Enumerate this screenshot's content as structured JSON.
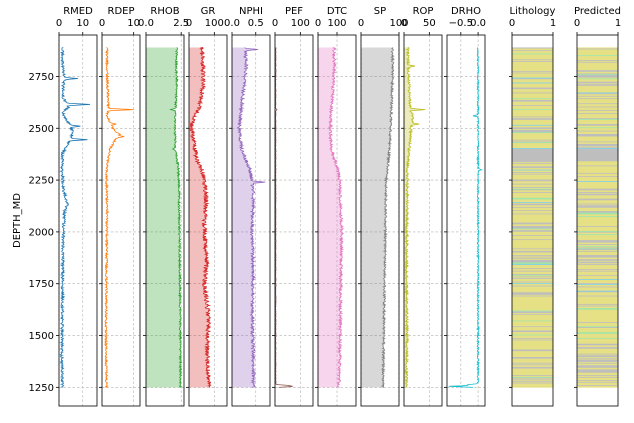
{
  "chart_data": {
    "type": "line",
    "ylabel": "DEPTH_MD",
    "yticks": [
      1250,
      1500,
      1750,
      2000,
      2250,
      2500,
      2750
    ],
    "ylim": [
      1160,
      2950
    ],
    "data_range": [
      1250,
      2890
    ],
    "grid": true,
    "curves": [
      {
        "name": "RMED",
        "color": "#1f77b4",
        "xlim": [
          0,
          16
        ],
        "xticks": [
          0,
          10
        ],
        "fill": false,
        "profile": [
          [
            1250,
            1.4
          ],
          [
            1400,
            1.2
          ],
          [
            1600,
            1.4
          ],
          [
            1800,
            1.5
          ],
          [
            2000,
            1.8
          ],
          [
            2100,
            2.3
          ],
          [
            2140,
            3.5
          ],
          [
            2200,
            2.0
          ],
          [
            2300,
            1.2
          ],
          [
            2380,
            1.5
          ],
          [
            2440,
            4.5
          ],
          [
            2480,
            6.0
          ],
          [
            2510,
            5.0
          ],
          [
            2540,
            3.0
          ],
          [
            2580,
            1.5
          ],
          [
            2600,
            4.0
          ],
          [
            2650,
            1.6
          ],
          [
            2750,
            2.0
          ],
          [
            2800,
            1.5
          ],
          [
            2890,
            1.4
          ]
        ],
        "noise": 0.6,
        "spikes": [
          [
            2445,
            12
          ],
          [
            2615,
            13
          ],
          [
            2740,
            8
          ],
          [
            2510,
            9
          ],
          [
            2130,
            4
          ]
        ]
      },
      {
        "name": "RDEP",
        "color": "#ff7f0e",
        "xlim": [
          0,
          12
        ],
        "xticks": [
          0,
          10
        ],
        "fill": false,
        "profile": [
          [
            1250,
            1.4
          ],
          [
            1500,
            1.3
          ],
          [
            1800,
            1.4
          ],
          [
            2100,
            1.6
          ],
          [
            2300,
            1.4
          ],
          [
            2400,
            2.5
          ],
          [
            2440,
            4.0
          ],
          [
            2470,
            5.5
          ],
          [
            2500,
            3.5
          ],
          [
            2530,
            2.5
          ],
          [
            2560,
            1.6
          ],
          [
            2600,
            2.0
          ],
          [
            2700,
            1.8
          ],
          [
            2800,
            1.6
          ],
          [
            2890,
            1.5
          ]
        ],
        "noise": 0.35,
        "spikes": [
          [
            2590,
            10
          ],
          [
            2460,
            7
          ],
          [
            2520,
            4.5
          ]
        ]
      },
      {
        "name": "RHOB",
        "color": "#2ca02c",
        "xlim": [
          0,
          2.7
        ],
        "xticks": [
          0.0,
          2.5
        ],
        "fill": true,
        "profile": [
          [
            1250,
            2.45
          ],
          [
            1400,
            2.45
          ],
          [
            1700,
            2.42
          ],
          [
            2000,
            2.38
          ],
          [
            2200,
            2.35
          ],
          [
            2310,
            2.3
          ],
          [
            2400,
            2.1
          ],
          [
            2500,
            2.05
          ],
          [
            2600,
            2.1
          ],
          [
            2700,
            2.2
          ],
          [
            2800,
            2.15
          ],
          [
            2890,
            2.2
          ]
        ],
        "noise": 0.07,
        "spikes": [
          [
            2590,
            1.75
          ],
          [
            2400,
            1.9
          ]
        ]
      },
      {
        "name": "GR",
        "color": "#d62728",
        "xlim": [
          0,
          150
        ],
        "xticks": [
          0,
          100
        ],
        "fill": true,
        "profile": [
          [
            1250,
            80
          ],
          [
            1350,
            75
          ],
          [
            1450,
            70
          ],
          [
            1550,
            78
          ],
          [
            1650,
            72
          ],
          [
            1750,
            60
          ],
          [
            1850,
            70
          ],
          [
            1950,
            65
          ],
          [
            2050,
            60
          ],
          [
            2150,
            68
          ],
          [
            2250,
            60
          ],
          [
            2300,
            50
          ],
          [
            2350,
            30
          ],
          [
            2450,
            15
          ],
          [
            2520,
            10
          ],
          [
            2560,
            25
          ],
          [
            2600,
            40
          ],
          [
            2700,
            55
          ],
          [
            2800,
            55
          ],
          [
            2890,
            50
          ]
        ],
        "noise": 9,
        "spikes": []
      },
      {
        "name": "NPHI",
        "color": "#9467bd",
        "xlim": [
          0,
          0.8
        ],
        "xticks": [
          0.0,
          0.5
        ],
        "fill": true,
        "profile": [
          [
            1250,
            0.45
          ],
          [
            1400,
            0.45
          ],
          [
            1600,
            0.42
          ],
          [
            1800,
            0.45
          ],
          [
            2000,
            0.42
          ],
          [
            2200,
            0.45
          ],
          [
            2300,
            0.38
          ],
          [
            2400,
            0.2
          ],
          [
            2500,
            0.15
          ],
          [
            2600,
            0.2
          ],
          [
            2700,
            0.25
          ],
          [
            2800,
            0.3
          ],
          [
            2890,
            0.28
          ]
        ],
        "noise": 0.035,
        "spikes": [
          [
            2240,
            0.7
          ],
          [
            2880,
            0.55
          ]
        ]
      },
      {
        "name": "PEF",
        "color": "#8c564b",
        "xlim": [
          0,
          150
        ],
        "xticks": [
          0,
          100
        ],
        "fill": false,
        "profile": [
          [
            1250,
            3
          ],
          [
            2890,
            3
          ]
        ],
        "noise": 1.2,
        "spikes": [
          [
            1255,
            80
          ],
          [
            1258,
            60
          ],
          [
            2590,
            8
          ]
        ]
      },
      {
        "name": "DTC",
        "color": "#e377c2",
        "xlim": [
          0,
          200
        ],
        "xticks": [
          0,
          100
        ],
        "fill": true,
        "profile": [
          [
            1250,
            110
          ],
          [
            1400,
            115
          ],
          [
            1600,
            118
          ],
          [
            1800,
            120
          ],
          [
            2000,
            125
          ],
          [
            2100,
            120
          ],
          [
            2250,
            115
          ],
          [
            2300,
            105
          ],
          [
            2400,
            70
          ],
          [
            2500,
            65
          ],
          [
            2600,
            70
          ],
          [
            2700,
            80
          ],
          [
            2800,
            85
          ],
          [
            2890,
            85
          ]
        ],
        "noise": 8,
        "spikes": []
      },
      {
        "name": "SP",
        "color": "#7f7f7f",
        "xlim": [
          0,
          100
        ],
        "xticks": [
          0,
          100
        ],
        "fill": true,
        "profile": [
          [
            1250,
            58
          ],
          [
            1500,
            60
          ],
          [
            1750,
            62
          ],
          [
            2000,
            64
          ],
          [
            2250,
            66
          ],
          [
            2300,
            70
          ],
          [
            2400,
            75
          ],
          [
            2500,
            78
          ],
          [
            2600,
            80
          ],
          [
            2700,
            82
          ],
          [
            2800,
            84
          ],
          [
            2890,
            82
          ]
        ],
        "noise": 3,
        "spikes": []
      },
      {
        "name": "ROP",
        "color": "#bcbd22",
        "xlim": [
          0,
          75
        ],
        "xticks": [
          0,
          50
        ],
        "fill": true,
        "profile": [
          [
            1250,
            5
          ],
          [
            1500,
            6
          ],
          [
            1800,
            5
          ],
          [
            2100,
            6
          ],
          [
            2300,
            7
          ],
          [
            2400,
            10
          ],
          [
            2450,
            12
          ],
          [
            2500,
            14
          ],
          [
            2550,
            18
          ],
          [
            2600,
            12
          ],
          [
            2700,
            10
          ],
          [
            2800,
            8
          ],
          [
            2890,
            8
          ]
        ],
        "noise": 2.5,
        "spikes": [
          [
            2590,
            42
          ],
          [
            2520,
            30
          ],
          [
            2800,
            22
          ]
        ]
      },
      {
        "name": "DRHO",
        "color": "#17becf",
        "xlim": [
          -0.9,
          0.2
        ],
        "xticks": [
          -0.5,
          0.0
        ],
        "fill": false,
        "profile": [
          [
            1250,
            0.0
          ],
          [
            2890,
            0.0
          ]
        ],
        "noise": 0.025,
        "spikes": [
          [
            1255,
            -0.85
          ],
          [
            1262,
            -0.35
          ],
          [
            2560,
            -0.15
          ],
          [
            2300,
            0.1
          ]
        ]
      }
    ],
    "lithology_tracks": [
      {
        "name": "Lithology",
        "xlim": [
          0,
          1
        ],
        "xticks": [
          0,
          1
        ]
      },
      {
        "name": "Predicted",
        "xlim": [
          0,
          1
        ],
        "xticks": [
          0,
          1
        ]
      }
    ],
    "lithology_colors": {
      "sandstone": "#e6e085",
      "shale": "#bebebe",
      "limestone": "#9fe6a9",
      "marl": "#7fd1e8"
    },
    "lithology_intervals": [
      [
        2340,
        2400,
        "shale"
      ],
      [
        2400,
        2890,
        "mixed"
      ],
      [
        1250,
        2340,
        "mixed"
      ]
    ]
  }
}
